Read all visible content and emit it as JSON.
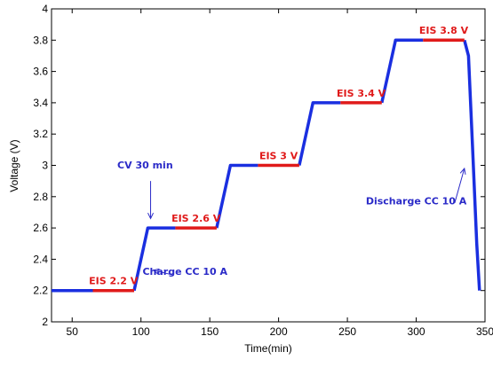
{
  "chart_data": {
    "type": "line",
    "xlabel": "Time(min)",
    "ylabel": "Voltage (V)",
    "xlim": [
      35,
      350
    ],
    "ylim": [
      2,
      4
    ],
    "xticks": [
      50,
      100,
      150,
      200,
      250,
      300,
      350
    ],
    "yticks": [
      2,
      2.2,
      2.4,
      2.6,
      2.8,
      3,
      3.2,
      3.4,
      3.6,
      3.8,
      4
    ],
    "grid": false,
    "colors": {
      "charge": "#1a2fe0",
      "eis": "#e01a1a",
      "annotation_blue": "#2b2bc8",
      "annotation_red": "#e01a1a"
    },
    "series": [
      {
        "color": "#1a2fe0",
        "segments": [
          [
            [
              35,
              2.2
            ],
            [
              65,
              2.2
            ]
          ],
          [
            [
              95,
              2.2
            ],
            [
              105,
              2.6
            ],
            [
              125,
              2.6
            ]
          ],
          [
            [
              155,
              2.6
            ],
            [
              165,
              3.0
            ],
            [
              185,
              3.0
            ]
          ],
          [
            [
              215,
              3.0
            ],
            [
              225,
              3.4
            ],
            [
              245,
              3.4
            ]
          ],
          [
            [
              275,
              3.4
            ],
            [
              285,
              3.8
            ],
            [
              305,
              3.8
            ]
          ],
          [
            [
              335,
              3.8
            ],
            [
              338,
              3.7
            ],
            [
              341,
              3.1
            ],
            [
              344,
              2.5
            ],
            [
              346,
              2.2
            ]
          ]
        ]
      },
      {
        "color": "#e01a1a",
        "segments": [
          [
            [
              65,
              2.2
            ],
            [
              95,
              2.2
            ]
          ],
          [
            [
              125,
              2.6
            ],
            [
              155,
              2.6
            ]
          ],
          [
            [
              185,
              3.0
            ],
            [
              215,
              3.0
            ]
          ],
          [
            [
              245,
              3.4
            ],
            [
              275,
              3.4
            ]
          ],
          [
            [
              305,
              3.8
            ],
            [
              335,
              3.8
            ]
          ]
        ]
      }
    ],
    "annotations": [
      {
        "text": "EIS 2.2 V",
        "color": "#e01a1a",
        "x": 80,
        "y": 2.24
      },
      {
        "text": "EIS 2.6 V",
        "color": "#e01a1a",
        "x": 140,
        "y": 2.64
      },
      {
        "text": "EIS 3 V",
        "color": "#e01a1a",
        "x": 200,
        "y": 3.04
      },
      {
        "text": "EIS 3.4 V",
        "color": "#e01a1a",
        "x": 260,
        "y": 3.44
      },
      {
        "text": "EIS 3.8 V",
        "color": "#e01a1a",
        "x": 320,
        "y": 3.84
      },
      {
        "text": "CV 30 min",
        "color": "#2b2bc8",
        "x": 103,
        "y": 2.98
      },
      {
        "text": "Charge CC 10 A",
        "color": "#2b2bc8",
        "x": 132,
        "y": 2.3
      },
      {
        "text": "Discharge  CC 10 A",
        "color": "#2b2bc8",
        "x": 300,
        "y": 2.75
      }
    ],
    "arrows": [
      {
        "name": "cv-arrow",
        "from": [
          107,
          2.9
        ],
        "to": [
          107,
          2.66
        ]
      },
      {
        "name": "charge-arrow",
        "from": [
          123,
          2.3
        ],
        "to": [
          109,
          2.33
        ]
      },
      {
        "name": "discharge-arrow",
        "from": [
          328,
          2.76
        ],
        "to": [
          335,
          2.98
        ]
      }
    ]
  }
}
